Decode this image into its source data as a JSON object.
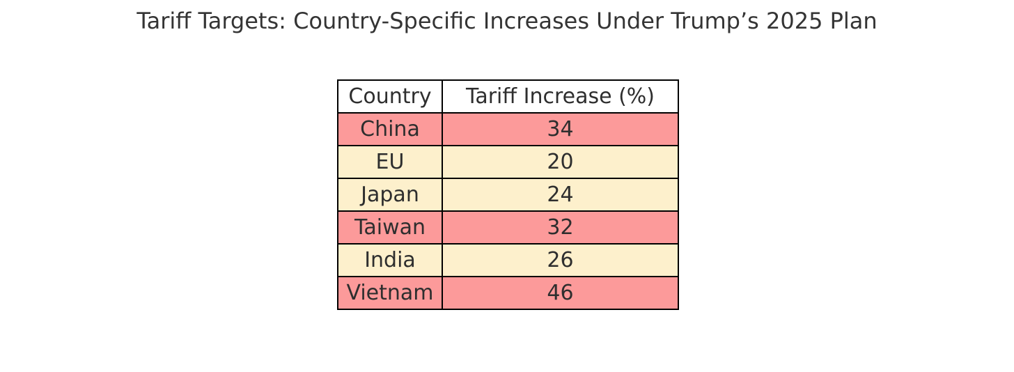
{
  "title": "Tariff Targets: Country-Specific Increases Under Trump’s 2025 Plan",
  "table": {
    "headers": [
      "Country",
      "Tariff Increase (%)"
    ],
    "rows": [
      {
        "country": "China",
        "value": "34",
        "highlight": "pink"
      },
      {
        "country": "EU",
        "value": "20",
        "highlight": "cream"
      },
      {
        "country": "Japan",
        "value": "24",
        "highlight": "cream"
      },
      {
        "country": "Taiwan",
        "value": "32",
        "highlight": "pink"
      },
      {
        "country": "India",
        "value": "26",
        "highlight": "cream"
      },
      {
        "country": "Vietnam",
        "value": "46",
        "highlight": "pink"
      }
    ]
  },
  "colors": {
    "pink": "#FC9A9A",
    "cream": "#FDF0CC",
    "header_bg": "#FFFFFF",
    "border": "#000000",
    "text": "#2E2E2E"
  },
  "chart_data": {
    "type": "table",
    "title": "Tariff Targets: Country-Specific Increases Under Trump’s 2025 Plan",
    "columns": [
      "Country",
      "Tariff Increase (%)"
    ],
    "rows": [
      [
        "China",
        34
      ],
      [
        "EU",
        20
      ],
      [
        "Japan",
        24
      ],
      [
        "Taiwan",
        32
      ],
      [
        "India",
        26
      ],
      [
        "Vietnam",
        46
      ]
    ],
    "row_highlights": [
      "pink",
      "cream",
      "cream",
      "pink",
      "cream",
      "pink"
    ],
    "legend": "none"
  }
}
